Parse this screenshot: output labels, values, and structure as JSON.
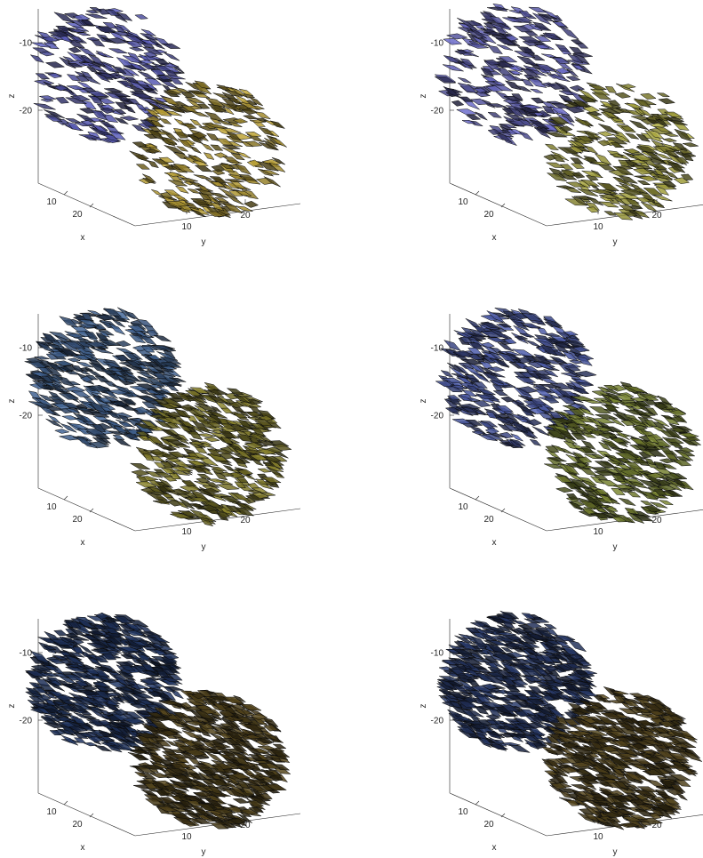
{
  "chart_data": [
    {
      "type": "scatter",
      "subtype": "3d-oriented-glyph-field",
      "title": "",
      "xlabel": "x",
      "ylabel": "y",
      "zlabel": "z",
      "x_ticks": [
        "10",
        "20"
      ],
      "y_ticks": [
        "10",
        "20"
      ],
      "z_ticks": [
        "-10",
        "-20"
      ],
      "xlim": [
        0,
        30
      ],
      "ylim": [
        0,
        30
      ],
      "zlim": [
        -30,
        -5
      ],
      "grid": false,
      "density": 0.45,
      "blobs": [
        {
          "name": "",
          "center_y": 10,
          "center_z": -13,
          "radius": 9,
          "color": "#4d4f9e"
        },
        {
          "name": "",
          "center_y": 21,
          "center_z": -22,
          "radius": 9,
          "color": "#a08a2e"
        }
      ]
    },
    {
      "type": "scatter",
      "subtype": "3d-oriented-glyph-field",
      "title": "",
      "xlabel": "x",
      "ylabel": "y",
      "zlabel": "z",
      "x_ticks": [
        "10",
        "20"
      ],
      "y_ticks": [
        "10",
        "20"
      ],
      "z_ticks": [
        "-10",
        "-20"
      ],
      "xlim": [
        0,
        30
      ],
      "ylim": [
        0,
        30
      ],
      "zlim": [
        -30,
        -5
      ],
      "grid": false,
      "density": 0.45,
      "blobs": [
        {
          "name": "",
          "center_y": 10,
          "center_z": -13,
          "radius": 9,
          "color": "#5a5aa8"
        },
        {
          "name": "",
          "center_y": 21,
          "center_z": -22,
          "radius": 9,
          "color": "#8c8a34"
        }
      ]
    },
    {
      "type": "scatter",
      "subtype": "3d-oriented-glyph-field",
      "title": "",
      "xlabel": "x",
      "ylabel": "y",
      "zlabel": "z",
      "x_ticks": [
        "10",
        "20"
      ],
      "y_ticks": [
        "10",
        "20"
      ],
      "z_ticks": [
        "-10",
        "-20"
      ],
      "xlim": [
        0,
        30
      ],
      "ylim": [
        0,
        30
      ],
      "zlim": [
        -30,
        -5
      ],
      "grid": false,
      "density": 0.7,
      "blobs": [
        {
          "name": "",
          "center_y": 10,
          "center_z": -13,
          "radius": 9,
          "color": "#3f5f8c"
        },
        {
          "name": "",
          "center_y": 21,
          "center_z": -22,
          "radius": 9,
          "color": "#807a2a"
        }
      ]
    },
    {
      "type": "scatter",
      "subtype": "3d-oriented-glyph-field",
      "title": "",
      "xlabel": "x",
      "ylabel": "y",
      "zlabel": "z",
      "x_ticks": [
        "10",
        "20"
      ],
      "y_ticks": [
        "10",
        "20"
      ],
      "z_ticks": [
        "-10",
        "-20"
      ],
      "xlim": [
        0,
        30
      ],
      "ylim": [
        0,
        30
      ],
      "zlim": [
        -30,
        -5
      ],
      "grid": false,
      "density": 0.65,
      "blobs": [
        {
          "name": "",
          "center_y": 10,
          "center_z": -13,
          "radius": 9,
          "color": "#4a58a0"
        },
        {
          "name": "",
          "center_y": 21,
          "center_z": -22,
          "radius": 9,
          "color": "#6f7a2e"
        }
      ]
    },
    {
      "type": "scatter",
      "subtype": "3d-oriented-glyph-field",
      "title": "",
      "xlabel": "x",
      "ylabel": "y",
      "zlabel": "z",
      "x_ticks": [
        "10",
        "20"
      ],
      "y_ticks": [
        "10",
        "20"
      ],
      "z_ticks": [
        "-10",
        "-20"
      ],
      "xlim": [
        0,
        30
      ],
      "ylim": [
        0,
        30
      ],
      "zlim": [
        -30,
        -5
      ],
      "grid": false,
      "density": 1.0,
      "blobs": [
        {
          "name": "",
          "center_y": 10,
          "center_z": -13,
          "radius": 9,
          "color": "#243a6a"
        },
        {
          "name": "",
          "center_y": 21,
          "center_z": -22,
          "radius": 9,
          "color": "#5a4a1e"
        }
      ]
    },
    {
      "type": "scatter",
      "subtype": "3d-oriented-glyph-field",
      "title": "",
      "xlabel": "x",
      "ylabel": "y",
      "zlabel": "z",
      "x_ticks": [
        "10",
        "20"
      ],
      "y_ticks": [
        "10",
        "20"
      ],
      "z_ticks": [
        "-10",
        "-20"
      ],
      "xlim": [
        0,
        30
      ],
      "ylim": [
        0,
        30
      ],
      "zlim": [
        -30,
        -5
      ],
      "grid": false,
      "density": 1.0,
      "blobs": [
        {
          "name": "",
          "center_y": 10,
          "center_z": -13,
          "radius": 9,
          "color": "#2a3c6e"
        },
        {
          "name": "",
          "center_y": 21,
          "center_z": -22,
          "radius": 9,
          "color": "#5c4c20"
        }
      ]
    }
  ]
}
